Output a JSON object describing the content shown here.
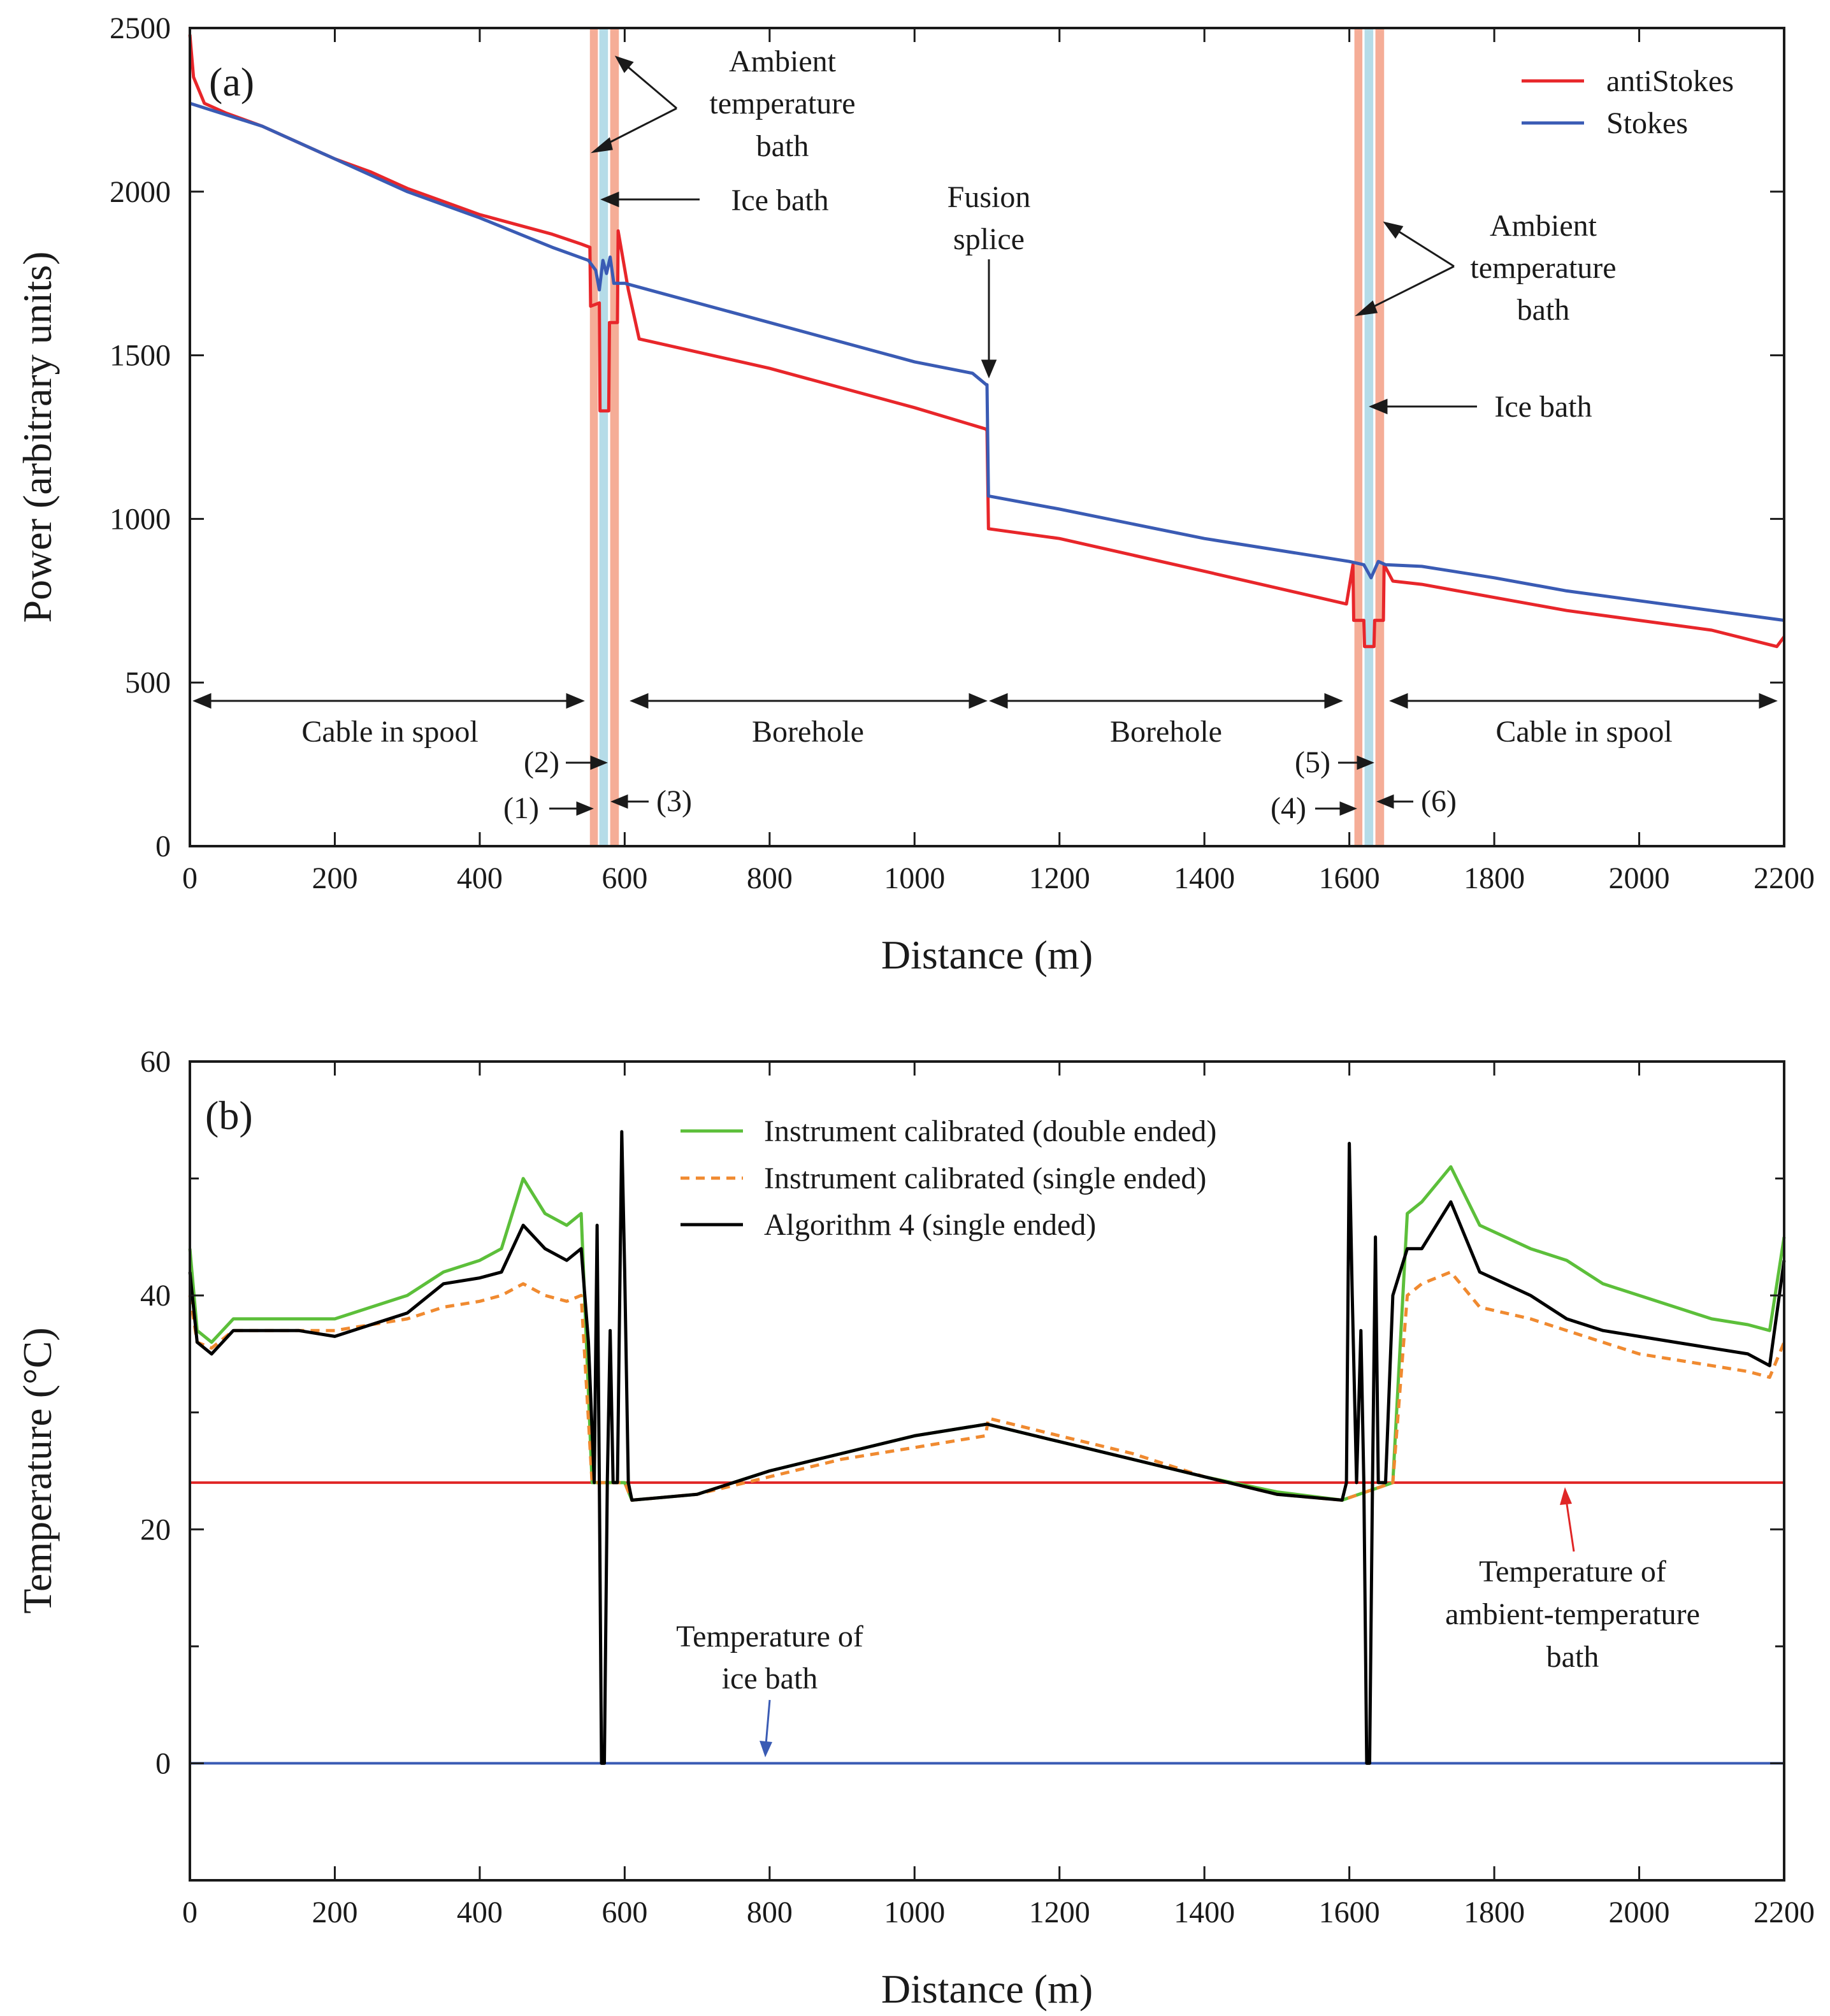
{
  "chart_data": [
    {
      "type": "line",
      "panel_label": "(a)",
      "xlabel": "Distance (m)",
      "ylabel": "Power (arbitrary units)",
      "xlim": [
        0,
        2200
      ],
      "ylim": [
        0,
        2500
      ],
      "xticks": [
        0,
        200,
        400,
        600,
        800,
        1000,
        1200,
        1400,
        1600,
        1800,
        2000,
        2200
      ],
      "yticks": [
        0,
        500,
        1000,
        1500,
        2000,
        2500
      ],
      "legend_position": "top-right",
      "series": [
        {
          "name": "antiStokes",
          "color": "#e8262a",
          "x": [
            0,
            5,
            20,
            50,
            100,
            150,
            200,
            250,
            300,
            350,
            400,
            450,
            500,
            540,
            552,
            553,
            565,
            566,
            578,
            579,
            590,
            591,
            605,
            620,
            800,
            1000,
            1098,
            1100,
            1102,
            1200,
            1400,
            1596,
            1605,
            1606,
            1620,
            1621,
            1634,
            1635,
            1647,
            1648,
            1660,
            1700,
            1800,
            1900,
            2000,
            2100,
            2190,
            2200
          ],
          "y": [
            2480,
            2350,
            2270,
            2240,
            2200,
            2150,
            2100,
            2060,
            2010,
            1970,
            1930,
            1900,
            1870,
            1840,
            1830,
            1650,
            1660,
            1330,
            1330,
            1600,
            1600,
            1880,
            1700,
            1550,
            1460,
            1340,
            1275,
            1270,
            970,
            940,
            840,
            740,
            860,
            690,
            690,
            610,
            610,
            690,
            690,
            860,
            810,
            800,
            760,
            720,
            690,
            660,
            610,
            640
          ]
        },
        {
          "name": "Stokes",
          "color": "#3a5bb4",
          "x": [
            0,
            100,
            200,
            300,
            400,
            500,
            550,
            560,
            565,
            570,
            575,
            580,
            585,
            600,
            800,
            1000,
            1080,
            1099,
            1100,
            1102,
            1200,
            1400,
            1600,
            1620,
            1630,
            1640,
            1650,
            1700,
            1800,
            1900,
            2000,
            2100,
            2200
          ],
          "y": [
            2270,
            2200,
            2100,
            2000,
            1920,
            1830,
            1790,
            1760,
            1700,
            1790,
            1750,
            1800,
            1720,
            1720,
            1600,
            1480,
            1445,
            1410,
            1410,
            1070,
            1030,
            940,
            870,
            860,
            820,
            870,
            860,
            855,
            820,
            780,
            750,
            720,
            690
          ]
        }
      ],
      "shaded_bands": [
        {
          "label": "(1)",
          "x": [
            552,
            563
          ],
          "color": "#f4a48c"
        },
        {
          "label": "(2)",
          "x": [
            565,
            577
          ],
          "color": "#add8e6"
        },
        {
          "label": "(3)",
          "x": [
            580,
            592
          ],
          "color": "#f4a48c"
        },
        {
          "label": "(4)",
          "x": [
            1607,
            1618
          ],
          "color": "#f4a48c"
        },
        {
          "label": "(5)",
          "x": [
            1621,
            1633
          ],
          "color": "#add8e6"
        },
        {
          "label": "(6)",
          "x": [
            1636,
            1648
          ],
          "color": "#f4a48c"
        }
      ],
      "annotations": {
        "ambient_bath_left": [
          "Ambient",
          "temperature",
          "bath"
        ],
        "ice_bath_left": "Ice bath",
        "fusion_splice": [
          "Fusion",
          "splice"
        ],
        "ambient_bath_right": [
          "Ambient",
          "temperature",
          "bath"
        ],
        "ice_bath_right": "Ice bath",
        "region_cable_spool_left": "Cable in spool",
        "region_borehole_left": "Borehole",
        "region_borehole_right": "Borehole",
        "region_cable_spool_right": "Cable in spool",
        "marker_1": "(1)",
        "marker_2": "(2)",
        "marker_3": "(3)",
        "marker_4": "(4)",
        "marker_5": "(5)",
        "marker_6": "(6)"
      }
    },
    {
      "type": "line",
      "panel_label": "(b)",
      "xlabel": "Distance (m)",
      "ylabel": "Temperature (°C)",
      "xlim": [
        0,
        2200
      ],
      "ylim": [
        -10,
        60
      ],
      "xticks": [
        0,
        200,
        400,
        600,
        800,
        1000,
        1200,
        1400,
        1600,
        1800,
        2000,
        2200
      ],
      "xtick_labels": [
        "0",
        "200",
        "400",
        "600",
        "800",
        "1000",
        "1200",
        "1400",
        "1600",
        "1800",
        "2000",
        "2200"
      ],
      "yticks": [
        0,
        20,
        40,
        60
      ],
      "yticks_minor": [
        -10,
        10,
        30,
        50
      ],
      "legend_position": "top-center",
      "series": [
        {
          "name": "Instrument calibrated (double ended)",
          "color": "#5cbf3a",
          "style": "solid",
          "x": [
            0,
            10,
            30,
            60,
            100,
            150,
            200,
            250,
            300,
            350,
            400,
            430,
            460,
            490,
            520,
            540,
            555,
            600,
            610,
            700,
            800,
            900,
            1000,
            1100,
            1200,
            1300,
            1400,
            1500,
            1590,
            1660,
            1680,
            1700,
            1740,
            1780,
            1850,
            1900,
            1950,
            2000,
            2050,
            2100,
            2150,
            2180,
            2200
          ],
          "y": [
            44,
            37,
            36,
            38,
            38,
            38,
            38,
            39,
            40,
            42,
            43,
            44,
            50,
            47,
            46,
            47,
            24,
            24,
            22.5,
            23,
            25,
            26.5,
            28,
            29,
            27.5,
            26,
            24.5,
            23.2,
            22.5,
            24,
            47,
            48,
            51,
            46,
            44,
            43,
            41,
            40,
            39,
            38,
            37.5,
            37,
            45
          ]
        },
        {
          "name": "Instrument calibrated (single ended)",
          "color": "#f08a30",
          "style": "dashed",
          "x": [
            0,
            10,
            30,
            60,
            100,
            150,
            200,
            250,
            300,
            350,
            400,
            430,
            460,
            490,
            520,
            540,
            555,
            600,
            610,
            700,
            800,
            900,
            1000,
            1098,
            1102,
            1200,
            1300,
            1400,
            1500,
            1590,
            1660,
            1680,
            1700,
            1740,
            1780,
            1850,
            1900,
            1950,
            2000,
            2050,
            2100,
            2150,
            2180,
            2200
          ],
          "y": [
            40,
            36,
            35.5,
            37,
            37,
            37,
            37,
            37.5,
            38,
            39,
            39.5,
            40,
            41,
            40,
            39.5,
            40,
            24,
            24,
            22.5,
            23,
            24.5,
            26,
            27,
            28,
            29.5,
            28,
            26.5,
            24.5,
            23,
            22.5,
            24,
            40,
            41,
            42,
            39,
            38,
            37,
            36,
            35,
            34.5,
            34,
            33.5,
            33,
            36
          ]
        },
        {
          "name": "Algorithm 4 (single ended)",
          "color": "#000000",
          "style": "solid",
          "x": [
            0,
            10,
            30,
            60,
            100,
            150,
            200,
            250,
            300,
            350,
            400,
            430,
            460,
            490,
            520,
            540,
            550,
            558,
            562,
            565,
            568,
            572,
            576,
            580,
            584,
            590,
            596,
            600,
            605,
            610,
            700,
            800,
            900,
            1000,
            1100,
            1200,
            1300,
            1400,
            1500,
            1590,
            1596,
            1600,
            1604,
            1610,
            1616,
            1620,
            1624,
            1628,
            1632,
            1636,
            1640,
            1650,
            1660,
            1680,
            1700,
            1740,
            1780,
            1850,
            1900,
            1950,
            2000,
            2050,
            2100,
            2150,
            2180,
            2200
          ],
          "y": [
            42,
            36,
            35,
            37,
            37,
            37,
            36.5,
            37.5,
            38.5,
            41,
            41.5,
            42,
            46,
            44,
            43,
            44,
            36,
            24,
            46,
            24,
            0,
            0,
            24,
            37,
            24,
            24,
            54,
            42,
            24,
            22.5,
            23,
            25,
            26.5,
            28,
            29,
            27.5,
            26,
            24.5,
            23,
            22.5,
            24,
            53,
            40,
            24,
            37,
            24,
            0,
            0,
            24,
            45,
            24,
            24,
            40,
            44,
            44,
            48,
            42,
            40,
            38,
            37,
            36.5,
            36,
            35.5,
            35,
            34,
            43
          ]
        }
      ],
      "reference_lines": [
        {
          "name": "Temperature of ambient-temperature bath",
          "y": 24,
          "color": "#e02626"
        },
        {
          "name": "Temperature of ice bath",
          "y": 0,
          "color": "#3a5bb4"
        }
      ],
      "annotations": {
        "ice_bath_label": [
          "Temperature of",
          "ice bath"
        ],
        "ambient_bath_label": [
          "Temperature of",
          "ambient-temperature",
          "bath"
        ]
      }
    }
  ]
}
